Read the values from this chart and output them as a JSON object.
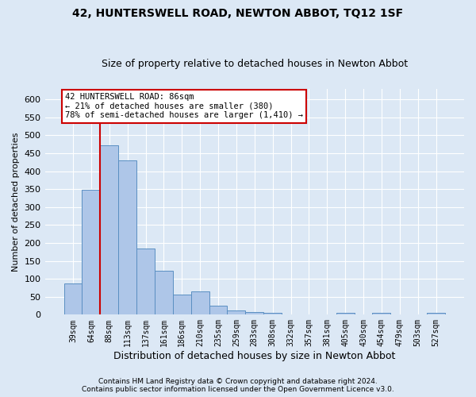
{
  "title": "42, HUNTERSWELL ROAD, NEWTON ABBOT, TQ12 1SF",
  "subtitle": "Size of property relative to detached houses in Newton Abbot",
  "xlabel": "Distribution of detached houses by size in Newton Abbot",
  "ylabel": "Number of detached properties",
  "categories": [
    "39sqm",
    "64sqm",
    "88sqm",
    "113sqm",
    "137sqm",
    "161sqm",
    "186sqm",
    "210sqm",
    "235sqm",
    "259sqm",
    "283sqm",
    "308sqm",
    "332sqm",
    "357sqm",
    "381sqm",
    "405sqm",
    "430sqm",
    "454sqm",
    "479sqm",
    "503sqm",
    "527sqm"
  ],
  "values": [
    88,
    348,
    472,
    430,
    185,
    122,
    55,
    65,
    25,
    12,
    8,
    5,
    0,
    0,
    0,
    5,
    0,
    5,
    0,
    0,
    5
  ],
  "bar_color": "#aec6e8",
  "bar_edge_color": "#5a8fc2",
  "vline_color": "#cc0000",
  "vline_index": 2,
  "annotation_text": "42 HUNTERSWELL ROAD: 86sqm\n← 21% of detached houses are smaller (380)\n78% of semi-detached houses are larger (1,410) →",
  "annotation_box_facecolor": "#ffffff",
  "annotation_box_edgecolor": "#cc0000",
  "ylim": [
    0,
    630
  ],
  "yticks": [
    0,
    50,
    100,
    150,
    200,
    250,
    300,
    350,
    400,
    450,
    500,
    550,
    600
  ],
  "footer1": "Contains HM Land Registry data © Crown copyright and database right 2024.",
  "footer2": "Contains public sector information licensed under the Open Government Licence v3.0.",
  "background_color": "#dce8f5",
  "grid_color": "#ffffff",
  "title_fontsize": 10,
  "subtitle_fontsize": 9,
  "ylabel_fontsize": 8,
  "xlabel_fontsize": 9,
  "annotation_fontsize": 7.5,
  "ytick_fontsize": 8,
  "xtick_fontsize": 7
}
